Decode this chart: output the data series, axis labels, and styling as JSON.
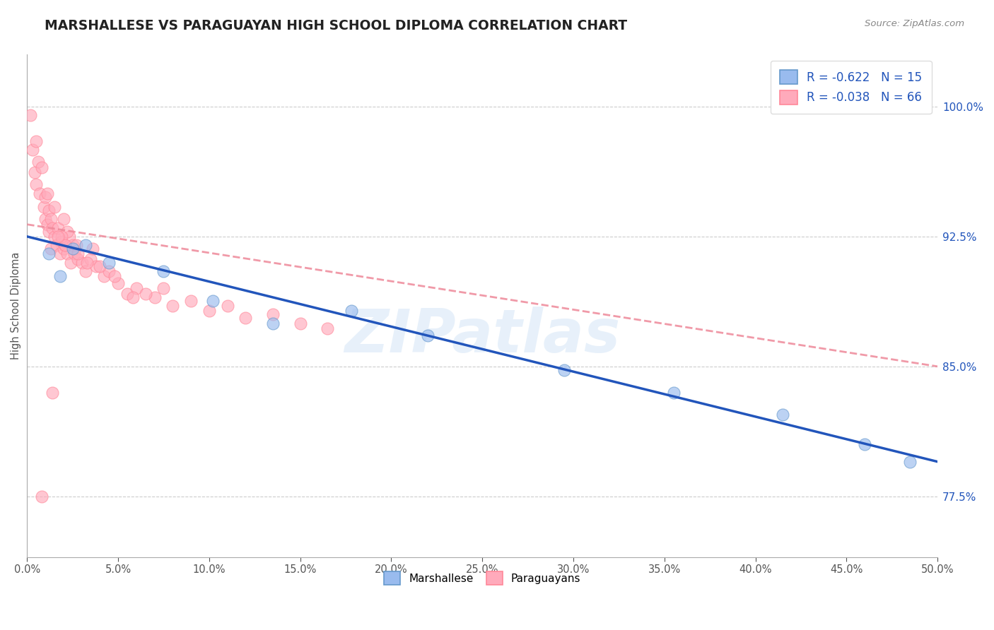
{
  "title": "MARSHALLESE VS PARAGUAYAN HIGH SCHOOL DIPLOMA CORRELATION CHART",
  "source": "Source: ZipAtlas.com",
  "ylabel": "High School Diploma",
  "xlim": [
    0.0,
    50.0
  ],
  "ylim": [
    74.0,
    103.0
  ],
  "yticks": [
    77.5,
    85.0,
    92.5,
    100.0
  ],
  "xticks": [
    0.0,
    5.0,
    10.0,
    15.0,
    20.0,
    25.0,
    30.0,
    35.0,
    40.0,
    45.0,
    50.0
  ],
  "marshallese_R": -0.622,
  "marshallese_N": 15,
  "paraguayan_R": -0.038,
  "paraguayan_N": 66,
  "blue_scatter_color": "#99BBEE",
  "pink_scatter_color": "#FFAABB",
  "blue_edge_color": "#6699CC",
  "pink_edge_color": "#FF8899",
  "trend_blue": "#2255BB",
  "trend_pink": "#EE8899",
  "watermark": "ZIPatlas",
  "watermark_color": "#AACCEE",
  "marshallese_x": [
    1.2,
    1.8,
    2.5,
    3.2,
    4.5,
    7.5,
    10.2,
    13.5,
    17.8,
    22.0,
    29.5,
    35.5,
    41.5,
    46.0,
    48.5
  ],
  "marshallese_y": [
    91.5,
    90.2,
    91.8,
    92.0,
    91.0,
    90.5,
    88.8,
    87.5,
    88.2,
    86.8,
    84.8,
    83.5,
    82.2,
    80.5,
    79.5
  ],
  "paraguayan_x": [
    0.2,
    0.3,
    0.4,
    0.5,
    0.5,
    0.6,
    0.7,
    0.8,
    0.9,
    1.0,
    1.0,
    1.1,
    1.1,
    1.2,
    1.2,
    1.3,
    1.3,
    1.4,
    1.5,
    1.5,
    1.6,
    1.7,
    1.8,
    1.9,
    2.0,
    2.0,
    2.1,
    2.2,
    2.3,
    2.4,
    2.5,
    2.6,
    2.7,
    2.8,
    3.0,
    3.2,
    3.5,
    3.8,
    4.2,
    4.5,
    5.0,
    5.5,
    6.0,
    7.0,
    8.0,
    9.0,
    10.0,
    11.0,
    12.0,
    13.5,
    15.0,
    16.5,
    7.5,
    5.8,
    4.8,
    3.3,
    2.2,
    1.9,
    2.8,
    4.0,
    6.5,
    3.6,
    1.4,
    2.1,
    1.7,
    0.8
  ],
  "paraguayan_y": [
    99.5,
    97.5,
    96.2,
    95.5,
    98.0,
    96.8,
    95.0,
    96.5,
    94.2,
    93.5,
    94.8,
    93.2,
    95.0,
    94.0,
    92.8,
    93.5,
    91.8,
    93.0,
    92.5,
    94.2,
    92.0,
    93.0,
    91.5,
    92.2,
    91.8,
    93.5,
    92.0,
    91.5,
    92.5,
    91.0,
    92.0,
    91.5,
    92.0,
    91.2,
    91.0,
    90.5,
    91.2,
    90.8,
    90.2,
    90.5,
    89.8,
    89.2,
    89.5,
    89.0,
    88.5,
    88.8,
    88.2,
    88.5,
    87.8,
    88.0,
    87.5,
    87.2,
    89.5,
    89.0,
    90.2,
    91.0,
    92.8,
    92.5,
    91.5,
    90.8,
    89.2,
    91.8,
    83.5,
    92.0,
    92.5,
    77.5
  ],
  "blue_trend_x0": 0.0,
  "blue_trend_y0": 92.5,
  "blue_trend_x1": 50.0,
  "blue_trend_y1": 79.5,
  "pink_trend_x0": 0.0,
  "pink_trend_y0": 93.2,
  "pink_trend_x1": 50.0,
  "pink_trend_y1": 85.0
}
